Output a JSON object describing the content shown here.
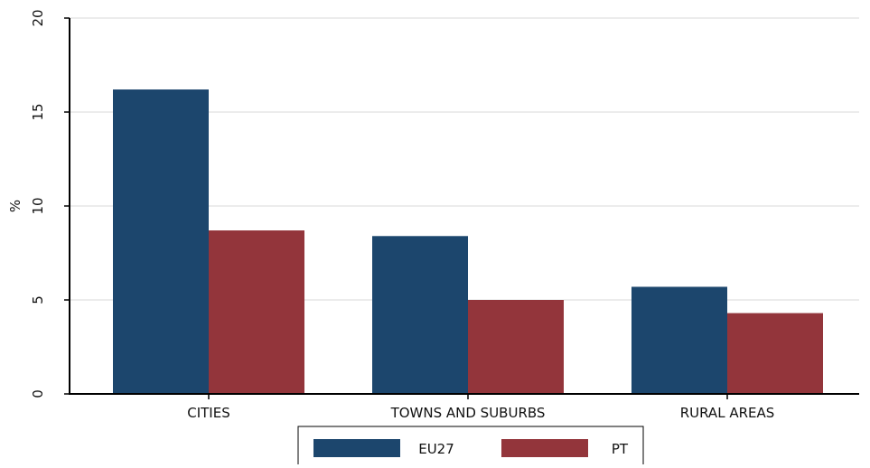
{
  "chart_data": {
    "type": "bar",
    "categories": [
      "CITIES",
      "TOWNS AND SUBURBS",
      "RURAL AREAS"
    ],
    "series": [
      {
        "name": "EU27",
        "values": [
          16.2,
          8.4,
          5.7
        ]
      },
      {
        "name": "PT",
        "values": [
          8.7,
          5.0,
          4.3
        ]
      }
    ],
    "title": "",
    "xlabel": "",
    "ylabel": "%",
    "ylim": [
      0,
      20
    ],
    "yticks": [
      0,
      5,
      10,
      15,
      20
    ],
    "grid": true,
    "legend_position": "bottom",
    "colors": {
      "EU27": "#1c466d",
      "PT": "#93353b",
      "grid": "#d9d9d9",
      "axis": "#000000"
    }
  }
}
